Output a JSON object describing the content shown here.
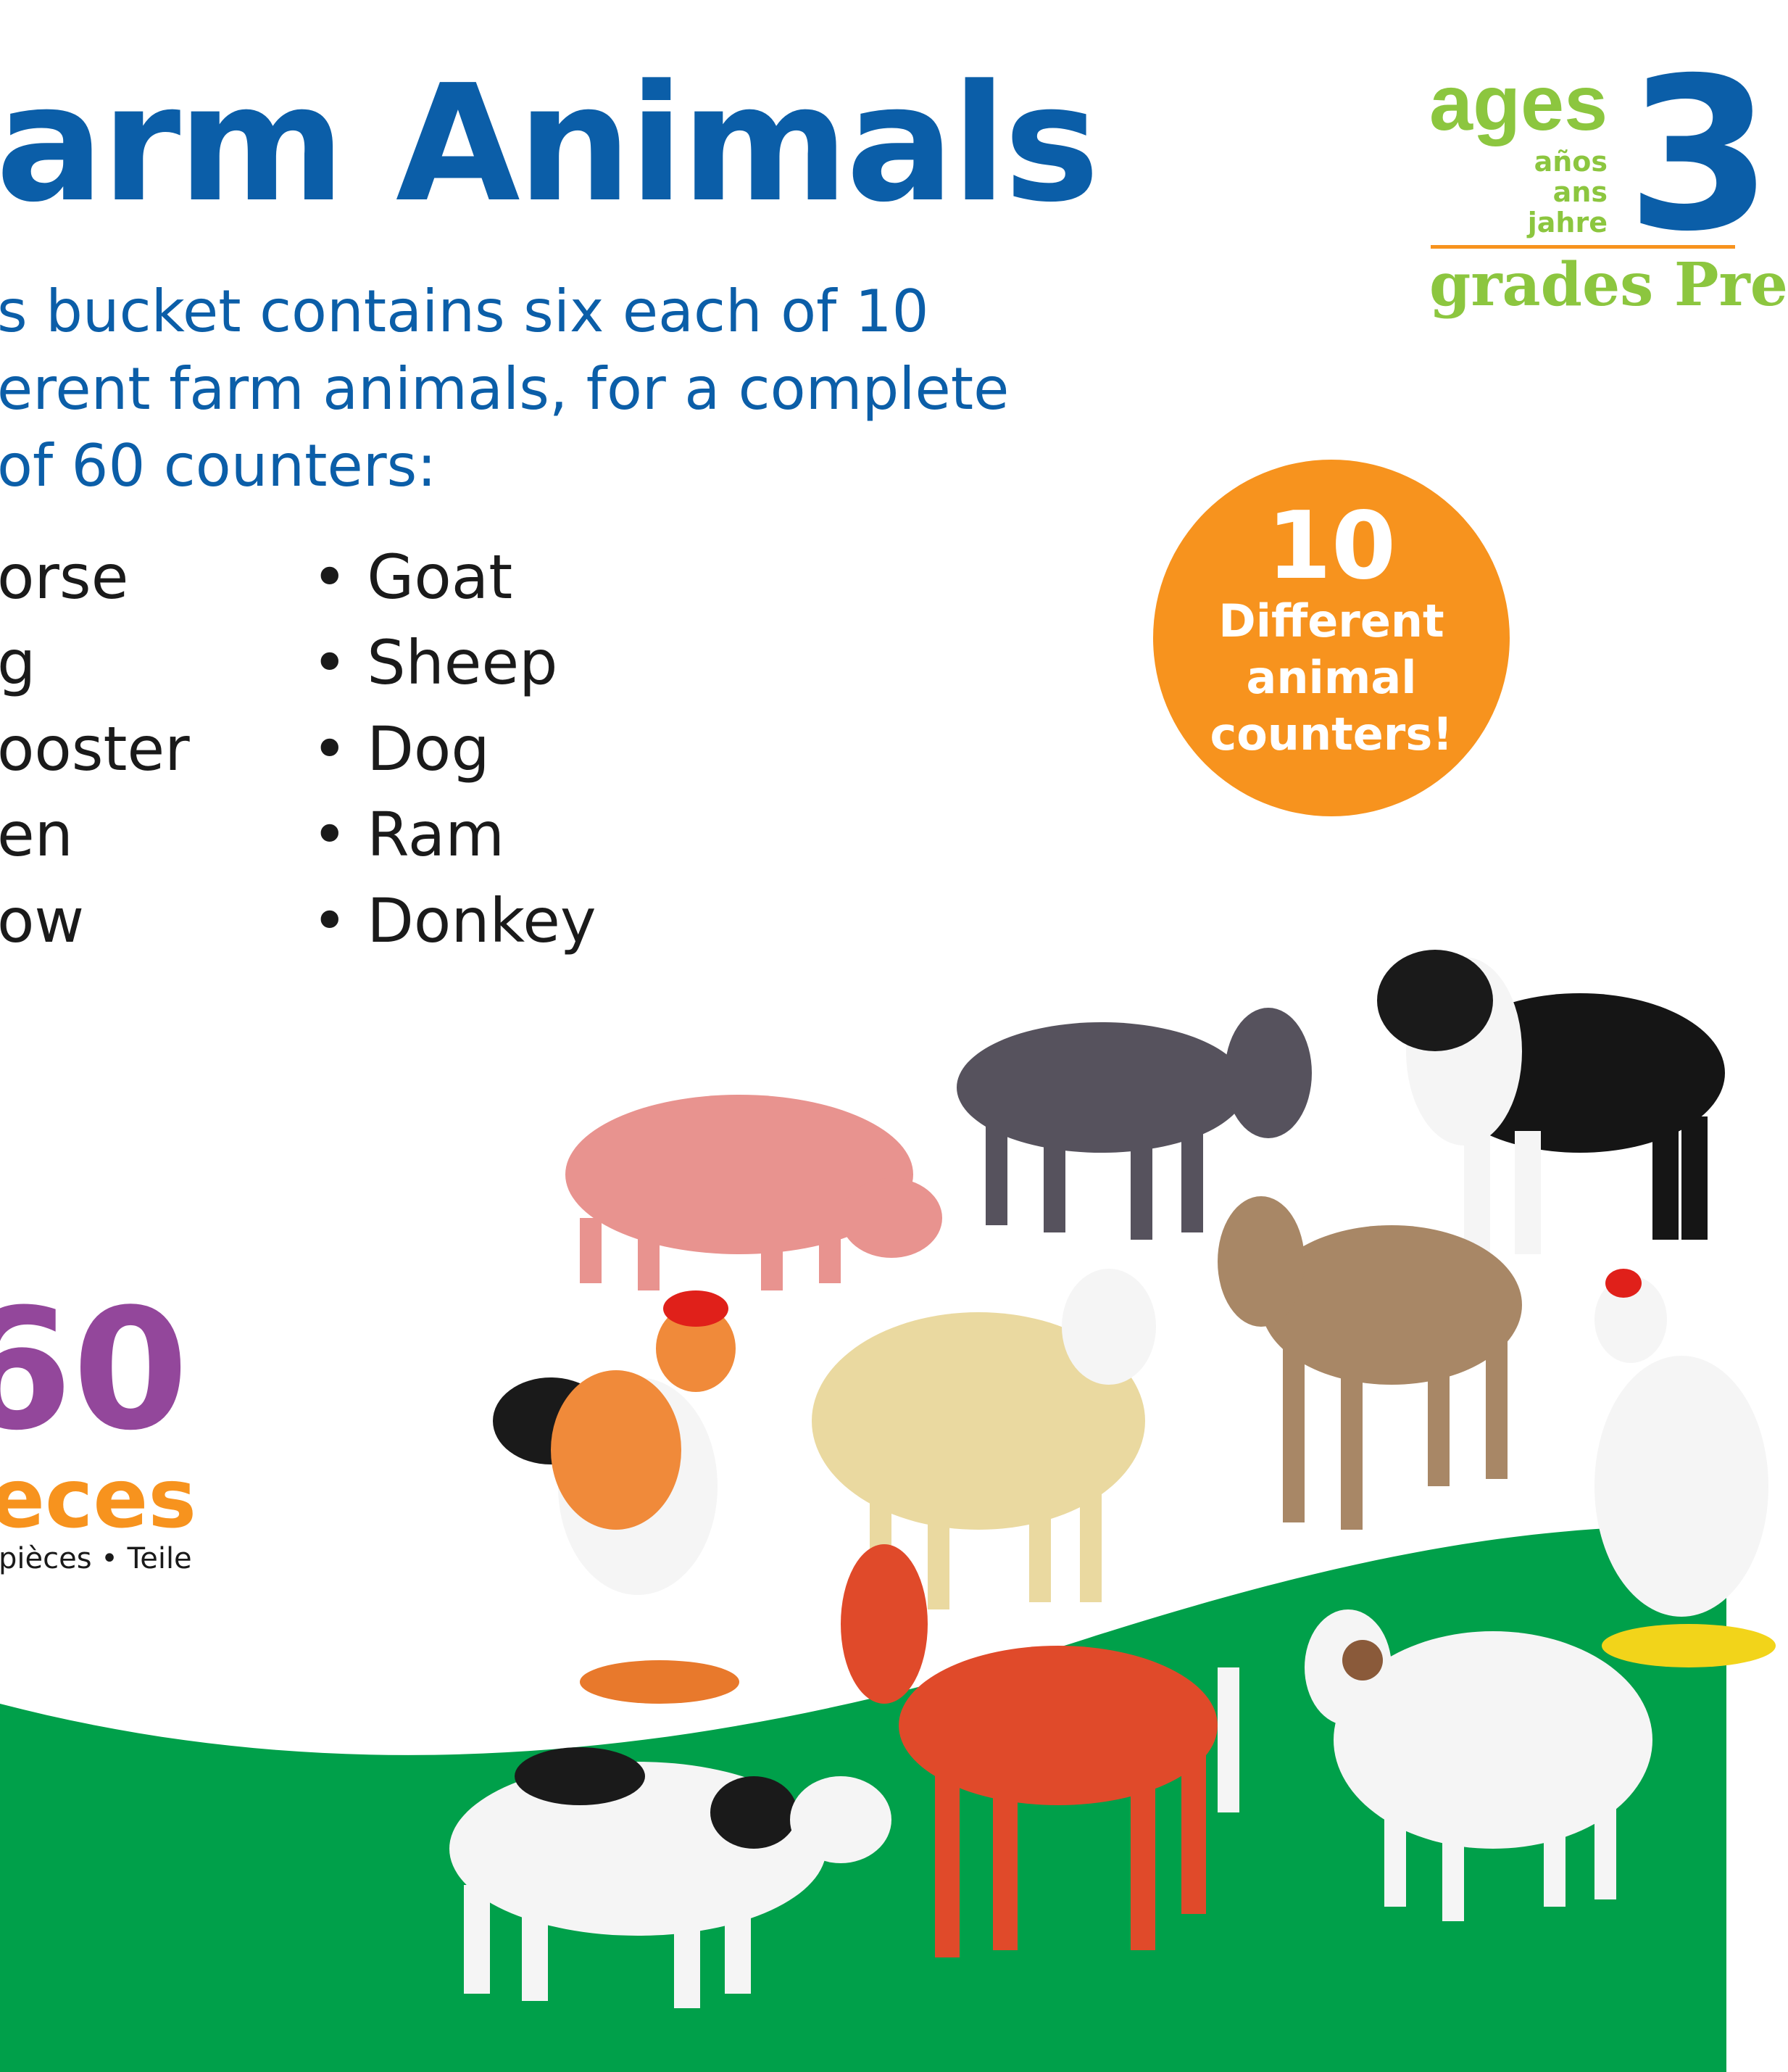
{
  "title": "arm Animals",
  "description": [
    "s bucket contains six each of 10",
    "erent farm animals, for a complete",
    "of 60 counters:"
  ],
  "list_left": [
    "orse",
    "g",
    "ooster",
    "en",
    "ow"
  ],
  "list_right": [
    "• Goat",
    "• Sheep",
    "• Dog",
    "• Ram",
    "• Donkey"
  ],
  "age_badge": {
    "ages": "ages",
    "translations": [
      "años",
      "ans",
      "jahre"
    ],
    "age": "3",
    "grades": "grades Pre"
  },
  "callout": {
    "number": "10",
    "lines": [
      "Different",
      "animal",
      "counters!"
    ]
  },
  "pieces": {
    "count": "60",
    "label": "eces",
    "translations": "pièces • Teile"
  },
  "colors": {
    "brand_blue": "#0b5ea8",
    "green": "#8cc63f",
    "orange": "#f7931e",
    "purple": "#93479b",
    "grass": "#00a04a"
  },
  "animals": [
    "pig",
    "donkey",
    "dog",
    "goat",
    "hen",
    "rooster",
    "sheep",
    "horse",
    "ram",
    "cow"
  ]
}
